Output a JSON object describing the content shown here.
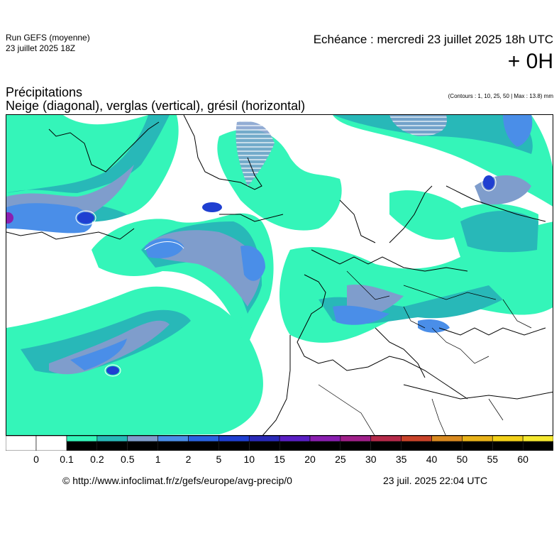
{
  "header": {
    "run_title": "Run GEFS (moyenne)",
    "run_date": "23 juillet 2025 18Z",
    "echeance": "Echéance : mercredi 23 juillet 2025 18h UTC",
    "offset": "+ 0H"
  },
  "titles": {
    "line1": "Précipitations",
    "line2": "Neige (diagonal), verglas (vertical), grésil (horizontal)",
    "contours": "(Contours : 1, 10, 25, 50 | Max : 13.8) mm"
  },
  "legend": {
    "labels": [
      "0",
      "0.1",
      "0.2",
      "0.5",
      "1",
      "2",
      "5",
      "10",
      "15",
      "20",
      "25",
      "30",
      "35",
      "40",
      "50",
      "55",
      "60"
    ],
    "colors": [
      "#ffffff",
      "#ffffff",
      "#34f5b9",
      "#28b8b8",
      "#7f9dcc",
      "#4a8ee8",
      "#2a63e0",
      "#1f3fd1",
      "#2a2ab8",
      "#5a1fc4",
      "#8a1fb0",
      "#a0208a",
      "#b52a4a",
      "#c9432a",
      "#d98a20",
      "#e8b21a",
      "#f2d01a",
      "#f5e830"
    ]
  },
  "map": {
    "colors": {
      "land": "#ffffff",
      "light": "#34f5b9",
      "teal": "#28b8b8",
      "greyblue": "#7f9dcc",
      "blue": "#4a8ee8",
      "dark": "#1f3fd1",
      "max": "#8a1fb0"
    }
  },
  "footer": {
    "url": "© http://www.infoclimat.fr/z/gefs/europe/avg-precip/0",
    "time": "23 juil. 2025 22:04 UTC"
  }
}
